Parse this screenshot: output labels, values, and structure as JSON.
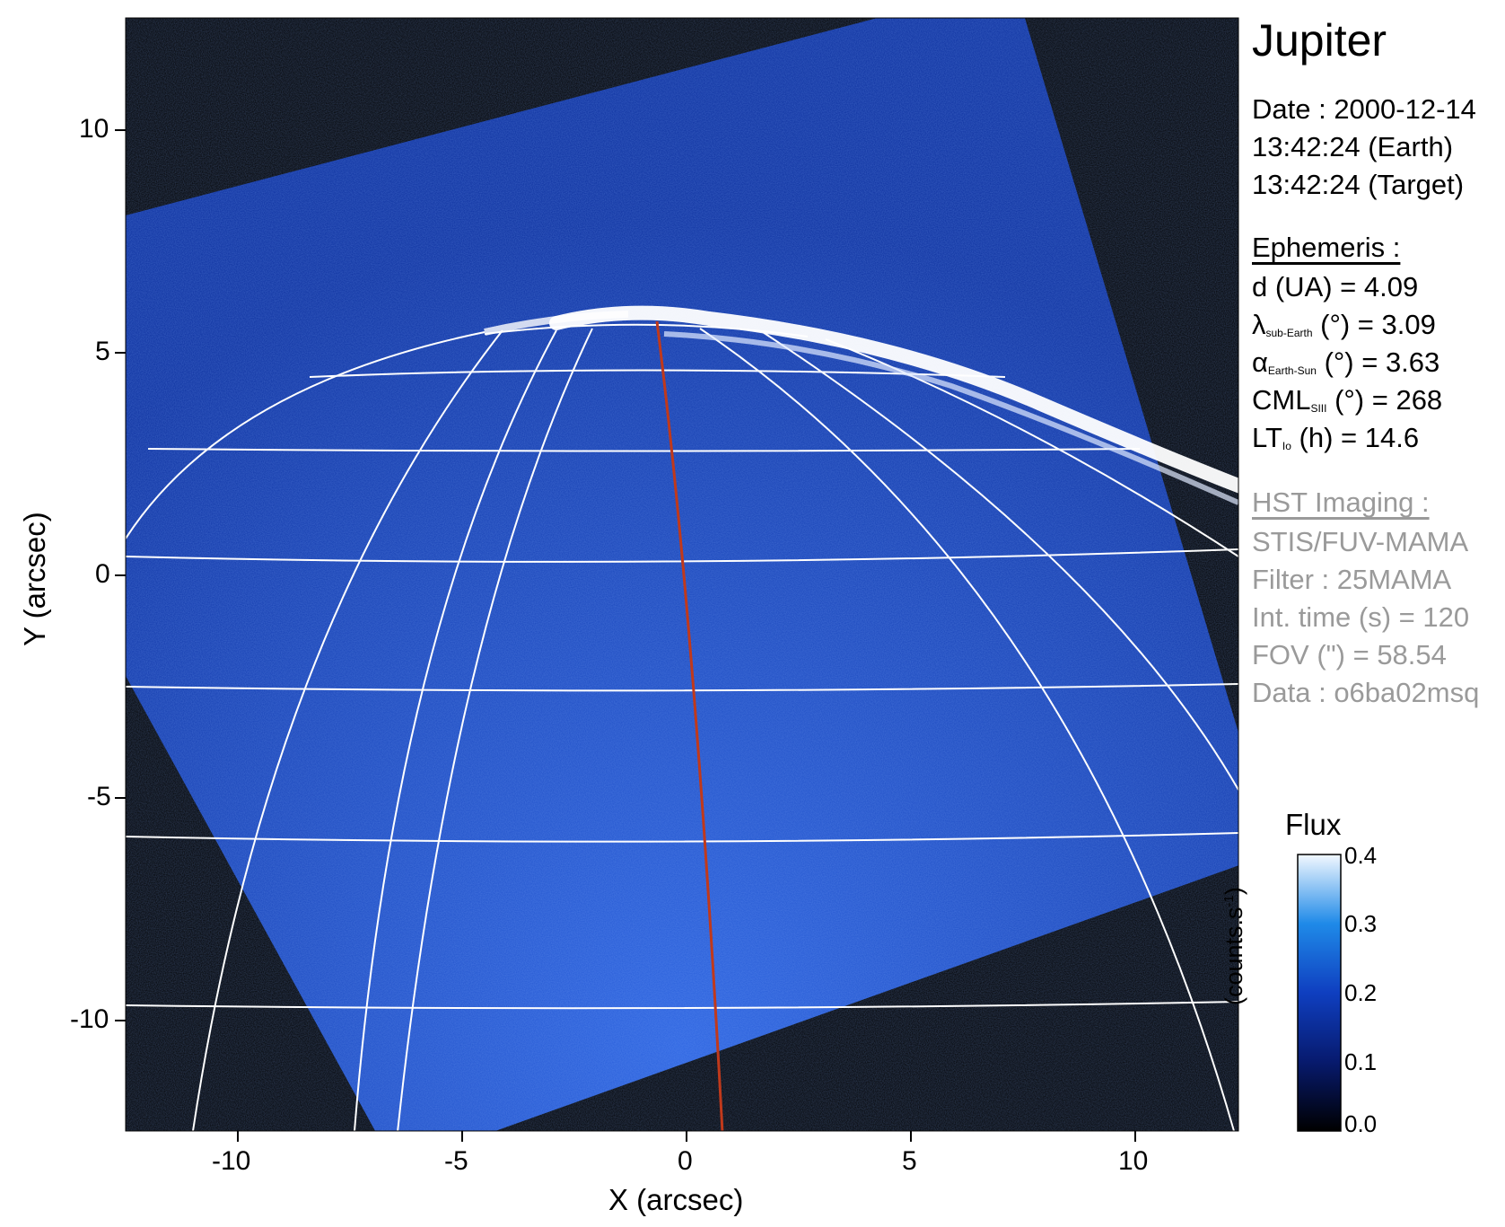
{
  "title": "Jupiter",
  "date": {
    "line1": "Date : 2000-12-14",
    "line2": "13:42:24 (Earth)",
    "line3": "13:42:24 (Target)"
  },
  "ephemeris": {
    "header": "Ephemeris :",
    "d": "d (UA)    = 4.09",
    "lambda_sym": "λ",
    "lambda_sub": "sub-Earth",
    "lambda_rest": " (°) = 3.09",
    "alpha_sym": "α",
    "alpha_sub": "Earth-Sun",
    "alpha_rest": " (°) = 3.63",
    "cml_sym": "CML",
    "cml_sub": "SIII",
    "cml_rest": " (°) = 268",
    "lt_sym": "LT",
    "lt_sub": "Io",
    "lt_rest": " (h) = 14.6"
  },
  "hst": {
    "header": "HST Imaging :",
    "instrument": "STIS/FUV-MAMA",
    "filter": "Filter : 25MAMA",
    "int_time": "Int. time (s) = 120",
    "fov": "FOV (\") = 58.54",
    "data": "Data : o6ba02msq"
  },
  "axes": {
    "xlabel": "X (arcsec)",
    "ylabel": "Y (arcsec)",
    "xticks": [
      "-10",
      "-5",
      "0",
      "5",
      "10"
    ],
    "yticks": [
      "10",
      "5",
      "0",
      "-5",
      "-10"
    ]
  },
  "colorbar": {
    "title": "Flux",
    "unit": "(counts.s",
    "unit_sup": "-1",
    "unit_close": ")",
    "ticks": [
      "0.4",
      "0.3",
      "0.2",
      "0.1",
      "0.0"
    ]
  },
  "colors": {
    "background": "#000000",
    "image_blue": "#1a4fd0",
    "grid": "#ffffff",
    "meridian": "#c0391b",
    "aurora": "#ffffff"
  }
}
